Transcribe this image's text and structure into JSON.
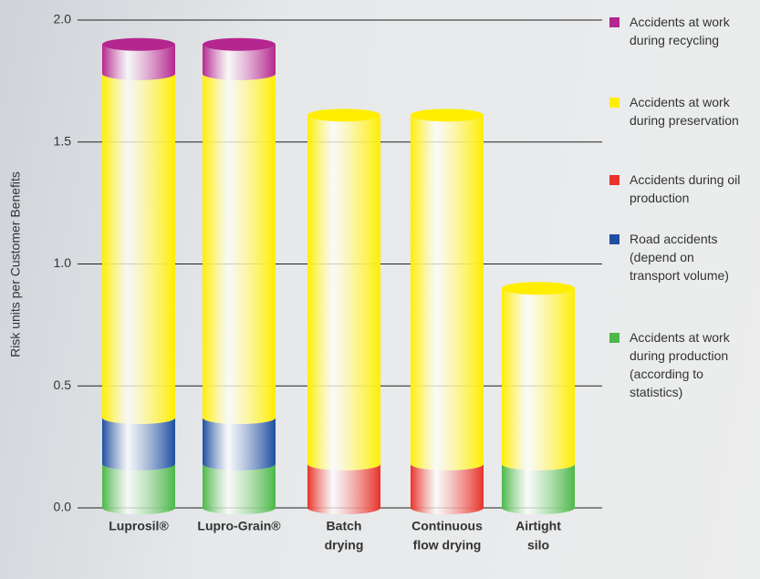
{
  "chart_data": {
    "type": "bar",
    "stacked": true,
    "y_label": "Risk units per Customer Benefits",
    "categories": [
      [
        "Luprosil®"
      ],
      [
        "Lupro-Grain®"
      ],
      [
        "Batch",
        "drying"
      ],
      [
        "Continuous",
        "flow drying"
      ],
      [
        "Airtight",
        "silo"
      ]
    ],
    "series": [
      {
        "name": "Accidents at work during production (according to statistics)",
        "color": "#4cb848",
        "values": [
          0.18,
          0.18,
          null,
          null,
          0.18
        ]
      },
      {
        "name": "Road accidents (depend on transport volume)",
        "color": "#1f4fa0",
        "values": [
          0.19,
          0.19,
          null,
          null,
          null
        ]
      },
      {
        "name": "Accidents during oil production",
        "color": "#e8322a",
        "values": [
          null,
          null,
          0.18,
          0.18,
          null
        ]
      },
      {
        "name": "Accidents at work during preservation",
        "color": "#ffee00",
        "values": [
          1.41,
          1.41,
          1.43,
          1.43,
          0.72
        ]
      },
      {
        "name": "Accidents at work during recycling",
        "color": "#b5268f",
        "values": [
          0.12,
          0.12,
          null,
          null,
          null
        ]
      }
    ],
    "ylim": [
      0,
      2.0
    ],
    "yticks": [
      {
        "value": 0,
        "label": "0.0"
      },
      {
        "value": 0.5,
        "label": "0.5"
      },
      {
        "value": 1,
        "label": "1.0"
      },
      {
        "value": 1.5,
        "label": "1.5"
      },
      {
        "value": 2,
        "label": "2.0"
      }
    ],
    "grid": true
  }
}
